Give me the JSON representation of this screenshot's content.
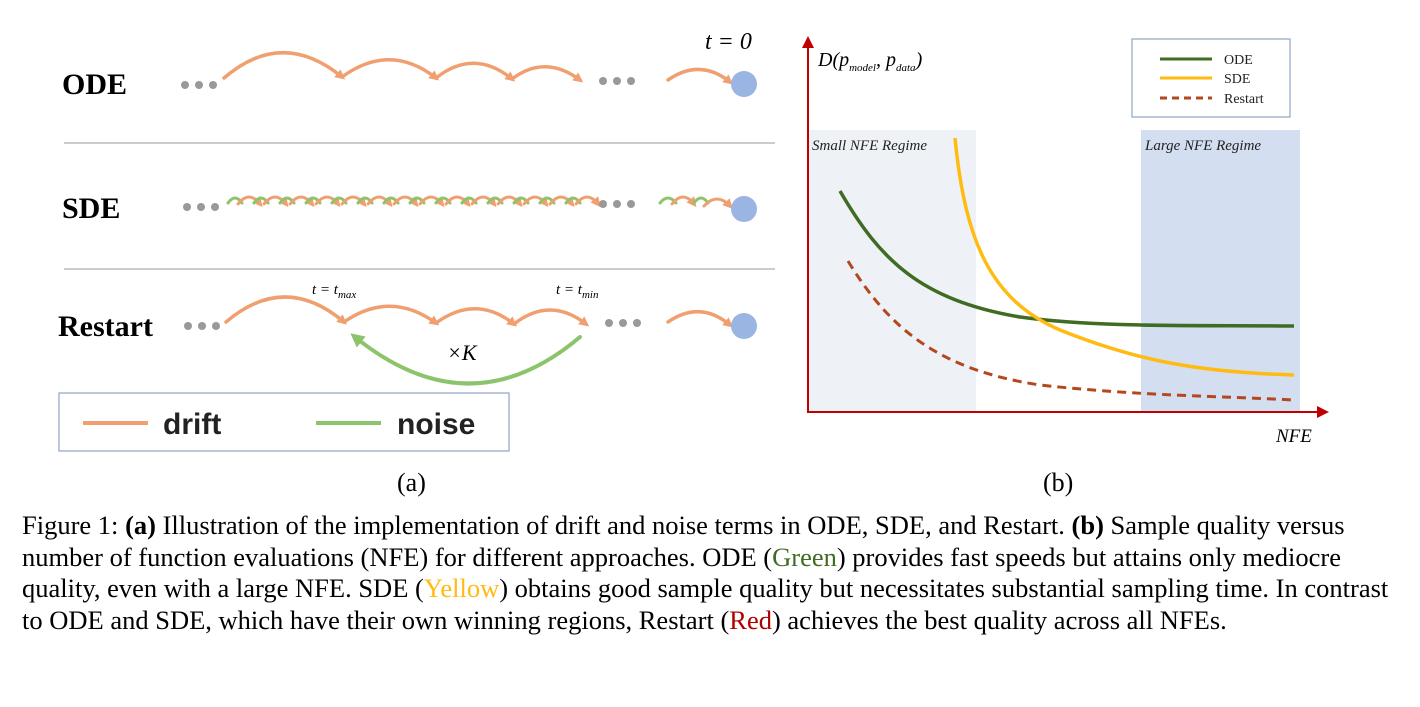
{
  "panel_a": {
    "rows": {
      "ode": "ODE",
      "sde": "SDE",
      "restart": "Restart"
    },
    "t0_label": "t = 0",
    "tmax_label": {
      "base": "t = t",
      "sub": "max"
    },
    "tmin_label": {
      "base": "t = t",
      "sub": "min"
    },
    "k_label": "×K",
    "legend": {
      "drift": "drift",
      "noise": "noise"
    },
    "label": "(a)",
    "colors": {
      "drift": "#f0a070",
      "noise": "#8cc46c",
      "dot": "#9bb5e2",
      "dots": "#999999"
    }
  },
  "panel_b": {
    "y_label": "D(p",
    "y_label_sub1": "model",
    "y_label_mid": ", p",
    "y_label_sub2": "data",
    "y_label_end": ")",
    "x_label": "NFE",
    "small_regime": "Small NFE Regime",
    "large_regime": "Large NFE Regime",
    "legend": {
      "ode": "ODE",
      "sde": "SDE",
      "restart": "Restart"
    },
    "label": "(b)",
    "colors": {
      "ode": "#3f6b22",
      "sde": "#ffbb11",
      "restart": "#b5471f",
      "axis": "#c00000",
      "regime_small": "#eef2f7",
      "regime_large": "#d3dff0"
    }
  },
  "caption": {
    "figure": "Figure 1: ",
    "a_tag": "(a)",
    "a_text": " Illustration of the implementation of drift and noise terms in ODE, SDE, and Restart. ",
    "b_tag": "(b)",
    "b_text1": " Sample quality versus number of function evaluations (NFE) for different approaches. ODE (",
    "green": "Green",
    "b_text2": ") provides fast speeds but attains only mediocre quality, even with a large NFE. SDE (",
    "yellow": "Yellow",
    "b_text3": ") obtains good sample quality but necessitates substantial sampling time. In contrast to ODE and SDE, which have their own winning regions, Restart (",
    "red": "Red",
    "b_text4": ") achieves the best quality across all NFEs."
  }
}
